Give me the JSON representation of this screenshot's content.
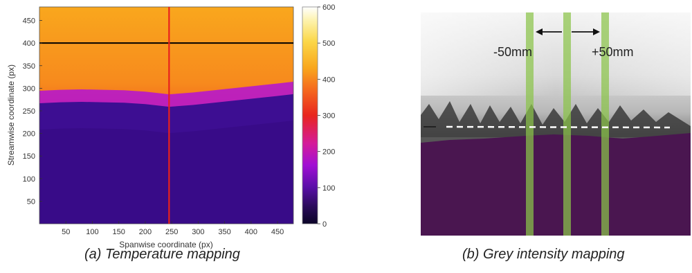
{
  "panel_a": {
    "caption": "(a)   Temperature mapping"
  },
  "panel_b": {
    "caption": "(b) Grey intensity mapping",
    "annotations": [
      "-50mm",
      "+50mm"
    ],
    "colors": {
      "band": "#8bc34a",
      "dashed_line": "#ffffff",
      "lower_region": "#4a1650",
      "upper_region": "#dcdcdc"
    }
  },
  "chart_data": [
    {
      "type": "heatmap",
      "title": "",
      "xlabel": "Spanwise coordinate (px)",
      "ylabel": "Streamwise coordinate (px)",
      "xlim": [
        0,
        480
      ],
      "ylim": [
        0,
        480
      ],
      "xticks": [
        50,
        100,
        150,
        200,
        250,
        300,
        350,
        400,
        450
      ],
      "yticks": [
        50,
        100,
        150,
        200,
        250,
        300,
        350,
        400,
        450
      ],
      "colorbar": {
        "range": [
          0,
          600
        ],
        "ticks": [
          0,
          100,
          200,
          300,
          400,
          500,
          600
        ],
        "colormap": "plasma-like (black-purple-red-orange-yellow-white)"
      },
      "reference_lines": [
        {
          "orientation": "horizontal",
          "value": 400,
          "color": "#000000"
        },
        {
          "orientation": "vertical",
          "value": 245,
          "color": "#e8211c"
        }
      ],
      "profile": {
        "x": [
          0,
          40,
          80,
          120,
          160,
          200,
          245,
          290,
          330,
          370,
          410,
          450,
          480
        ],
        "front_y": [
          270,
          272,
          273,
          272,
          271,
          268,
          262,
          266,
          271,
          276,
          281,
          286,
          290
        ],
        "value_above_front": 360,
        "value_below_front": 35,
        "value_at_top": 420
      }
    }
  ]
}
